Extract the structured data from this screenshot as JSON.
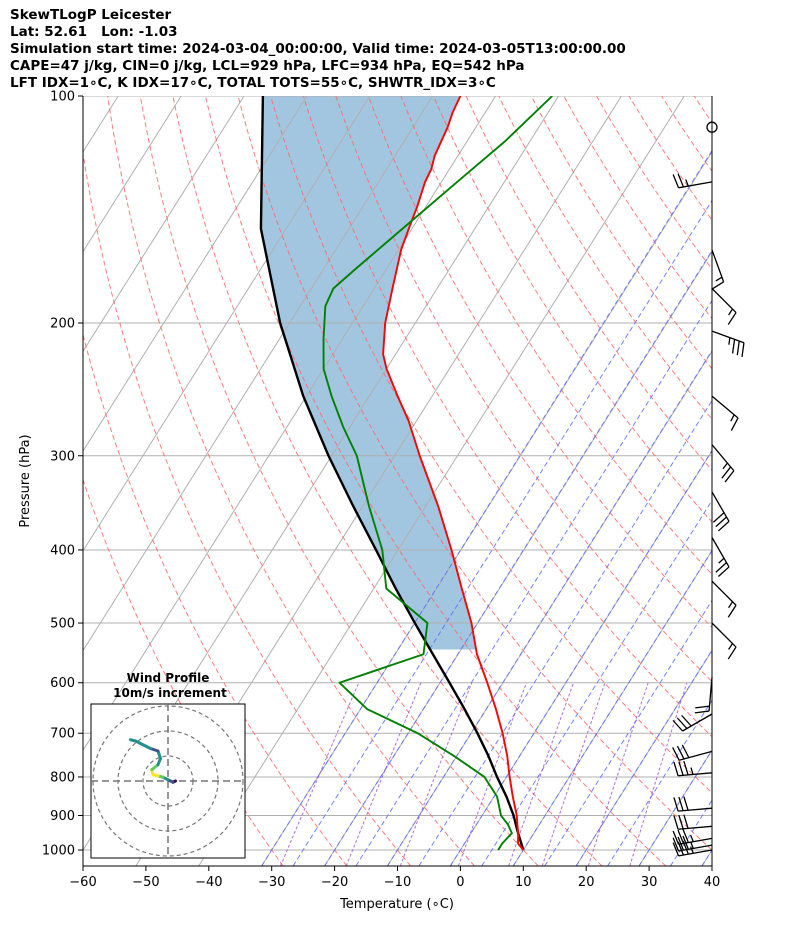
{
  "header": {
    "line1": "SkewTLogP Leicester",
    "line2": "Lat: 52.61   Lon: -1.03",
    "line3": "Simulation start time: 2024-03-04_00:00:00, Valid time: 2024-03-05T13:00:00.00",
    "line4": "CAPE=47 j/kg, CIN=0 j/kg, LCL=929 hPa, LFC=934 hPa, EQ=542 hPa",
    "line5": "LFT IDX=1∘C, K IDX=17∘C, TOTAL TOTS=55∘C, SHWTR_IDX=3∘C"
  },
  "colors": {
    "temperature": "#ff0000",
    "dewpoint": "#008000",
    "parcel": "#000000",
    "cape_fill": "#a3c6e0",
    "dry_adiabat": "#ff6666",
    "moist_adiabat": "#5b6cff",
    "mixing_ratio": "#9c4fc9",
    "isotherm": "#b0b0b0"
  },
  "chart_data": [
    {
      "type": "line",
      "title": "",
      "xlabel": "Temperature (∘C)",
      "ylabel": "Pressure (hPa)",
      "xlim": [
        -60,
        40
      ],
      "ylim": [
        1050,
        100
      ],
      "yscale": "log",
      "x_ticks": [
        -60,
        -50,
        -40,
        -30,
        -20,
        -10,
        0,
        10,
        20,
        30,
        40
      ],
      "x_tick_labels": [
        "−60",
        "−50",
        "−40",
        "−30",
        "−20",
        "−10",
        "0",
        "10",
        "20",
        "30",
        "40"
      ],
      "y_ticks": [
        1000,
        900,
        800,
        700,
        600,
        500,
        400,
        300,
        200,
        100
      ],
      "y_tick_labels": [
        "1000",
        "900",
        "800",
        "700",
        "600",
        "500",
        "400",
        "300",
        "200",
        "100"
      ],
      "grid": true,
      "skew_degC_per_decade": 75.6,
      "series": [
        {
          "role": "temperature",
          "values": [
            [
              1000,
              10.0
            ],
            [
              980,
              8.5
            ],
            [
              950,
              7.5
            ],
            [
              925,
              6.5
            ],
            [
              900,
              5.5
            ],
            [
              850,
              3.0
            ],
            [
              800,
              0.5
            ],
            [
              750,
              -2.0
            ],
            [
              700,
              -5.0
            ],
            [
              650,
              -8.5
            ],
            [
              600,
              -12.5
            ],
            [
              550,
              -17.0
            ],
            [
              500,
              -21.0
            ],
            [
              450,
              -26.0
            ],
            [
              400,
              -31.5
            ],
            [
              350,
              -38.0
            ],
            [
              300,
              -46.0
            ],
            [
              270,
              -51.2
            ],
            [
              250,
              -55.5
            ],
            [
              230,
              -60.0
            ],
            [
              220,
              -62.0
            ],
            [
              200,
              -64.8
            ],
            [
              180,
              -67.1
            ],
            [
              160,
              -69.6
            ],
            [
              150,
              -70.5
            ],
            [
              140,
              -71.4
            ],
            [
              130,
              -72.6
            ],
            [
              125,
              -72.9
            ],
            [
              120,
              -73.7
            ],
            [
              110,
              -74.5
            ],
            [
              105,
              -75.2
            ],
            [
              100,
              -75.6
            ]
          ]
        },
        {
          "role": "dewpoint",
          "values": [
            [
              1000,
              6.0
            ],
            [
              980,
              6.0
            ],
            [
              950,
              6.5
            ],
            [
              925,
              5.0
            ],
            [
              900,
              3.0
            ],
            [
              850,
              0.5
            ],
            [
              800,
              -3.5
            ],
            [
              750,
              -10.5
            ],
            [
              700,
              -18.5
            ],
            [
              650,
              -29.0
            ],
            [
              600,
              -36.0
            ],
            [
              550,
              -25.5
            ],
            [
              500,
              -28.0
            ],
            [
              450,
              -38.0
            ],
            [
              400,
              -42.5
            ],
            [
              350,
              -49.0
            ],
            [
              300,
              -56.0
            ],
            [
              275,
              -61.0
            ],
            [
              250,
              -66.0
            ],
            [
              230,
              -70.0
            ],
            [
              210,
              -73.0
            ],
            [
              190,
              -76.0
            ],
            [
              180,
              -76.5
            ],
            [
              170,
              -75.0
            ],
            [
              150,
              -71.5
            ],
            [
              130,
              -67.5
            ],
            [
              115,
              -64.0
            ],
            [
              100,
              -61.0
            ]
          ]
        },
        {
          "role": "parcel",
          "values": [
            [
              1000,
              10.0
            ],
            [
              950,
              7.5
            ],
            [
              930,
              6.5
            ],
            [
              900,
              5.0
            ],
            [
              850,
              2.0
            ],
            [
              800,
              -1.5
            ],
            [
              750,
              -5.0
            ],
            [
              700,
              -9.0
            ],
            [
              650,
              -13.5
            ],
            [
              600,
              -18.5
            ],
            [
              550,
              -24.0
            ],
            [
              500,
              -30.0
            ],
            [
              450,
              -36.5
            ],
            [
              400,
              -43.5
            ],
            [
              350,
              -51.5
            ],
            [
              300,
              -60.5
            ],
            [
              250,
              -70.5
            ],
            [
              200,
              -81.5
            ],
            [
              150,
              -94.0
            ],
            [
              100,
              -107.0
            ]
          ]
        }
      ],
      "cape_region": {
        "from_hPa": 542,
        "to_hPa": 100
      }
    },
    {
      "type": "line",
      "title": "Wind Profile",
      "subtitle": "10m/s increment",
      "rings_ms": [
        10,
        20,
        30
      ],
      "series": [
        {
          "name": "hodograph",
          "values": [
            [
              3.0,
              0.0
            ],
            [
              2.0,
              -0.5
            ],
            [
              0.0,
              0.5
            ],
            [
              -2.0,
              1.5
            ],
            [
              -4.0,
              2.0
            ],
            [
              -6.0,
              2.5
            ],
            [
              -6.5,
              4.5
            ],
            [
              -4.0,
              6.5
            ],
            [
              -3.0,
              9.0
            ],
            [
              -4.0,
              12.0
            ],
            [
              -7.0,
              13.0
            ],
            [
              -11.0,
              15.0
            ],
            [
              -13.0,
              16.0
            ],
            [
              -15.0,
              16.5
            ]
          ]
        }
      ]
    }
  ],
  "wind_barbs": [
    {
      "p": 1000,
      "speed_kt": 35,
      "dir_deg": 260
    },
    {
      "p": 985,
      "speed_kt": 35,
      "dir_deg": 260
    },
    {
      "p": 965,
      "speed_kt": 35,
      "dir_deg": 260
    },
    {
      "p": 930,
      "speed_kt": 30,
      "dir_deg": 265
    },
    {
      "p": 880,
      "speed_kt": 30,
      "dir_deg": 265
    },
    {
      "p": 790,
      "speed_kt": 35,
      "dir_deg": 265
    },
    {
      "p": 740,
      "speed_kt": 30,
      "dir_deg": 255
    },
    {
      "p": 660,
      "speed_kt": 30,
      "dir_deg": 240
    },
    {
      "p": 590,
      "speed_kt": 20,
      "dir_deg": 185
    },
    {
      "p": 500,
      "speed_kt": 15,
      "dir_deg": 135
    },
    {
      "p": 440,
      "speed_kt": 15,
      "dir_deg": 135
    },
    {
      "p": 385,
      "speed_kt": 25,
      "dir_deg": 150
    },
    {
      "p": 335,
      "speed_kt": 30,
      "dir_deg": 150
    },
    {
      "p": 290,
      "speed_kt": 25,
      "dir_deg": 140
    },
    {
      "p": 250,
      "speed_kt": 15,
      "dir_deg": 130
    },
    {
      "p": 205,
      "speed_kt": 35,
      "dir_deg": 110
    },
    {
      "p": 180,
      "speed_kt": 15,
      "dir_deg": 135
    },
    {
      "p": 160,
      "speed_kt": 15,
      "dir_deg": 160
    },
    {
      "p": 130,
      "speed_kt": 25,
      "dir_deg": 260
    },
    {
      "p": 110,
      "speed_kt": 0,
      "dir_deg": 0
    }
  ]
}
